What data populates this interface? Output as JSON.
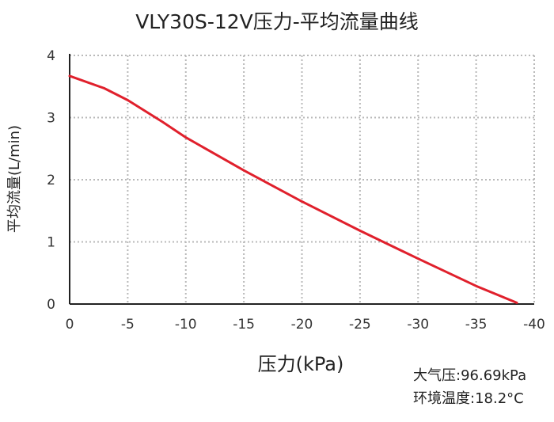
{
  "title": "VLY30S-12V压力-平均流量曲线",
  "chart_data": {
    "type": "line",
    "title": "VLY30S-12V压力-平均流量曲线",
    "xlabel": "压力(kPa)",
    "ylabel": "平均流量(L/min)",
    "xlim": [
      0,
      -40
    ],
    "ylim": [
      0,
      4
    ],
    "x_ticks": [
      0,
      -5,
      -10,
      -15,
      -20,
      -25,
      -30,
      -35,
      -40
    ],
    "y_ticks": [
      0,
      1,
      2,
      3,
      4
    ],
    "grid": true,
    "series": [
      {
        "color": "#e0202c",
        "x": [
          0,
          -3,
          -5,
          -8,
          -10,
          -15,
          -20,
          -25,
          -30,
          -35,
          -38.5
        ],
        "y": [
          3.67,
          3.47,
          3.28,
          2.93,
          2.68,
          2.15,
          1.65,
          1.18,
          0.73,
          0.29,
          0.02
        ]
      }
    ]
  },
  "notes": {
    "pressure": "大气压:96.69kPa",
    "temperature": "环境温度:18.2°C"
  }
}
